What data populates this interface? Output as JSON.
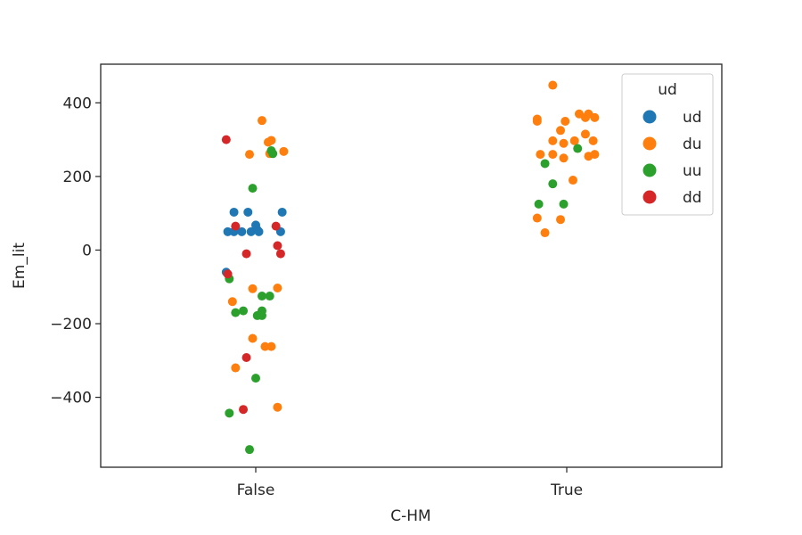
{
  "chart_data": {
    "type": "scatter",
    "subtype": "strip",
    "xlabel": "C-HM",
    "ylabel": "Em_lit",
    "categories": [
      "False",
      "True"
    ],
    "ylim": [
      -590,
      505
    ],
    "yticks": [
      -400,
      -200,
      0,
      200,
      400
    ],
    "ytick_labels": [
      "−400",
      "−200",
      "0",
      "200",
      "400"
    ],
    "grid": false,
    "legend": {
      "title": "ud",
      "position": "top-right"
    },
    "series": [
      {
        "name": "ud",
        "color": "#1f77b4",
        "points": [
          {
            "category": "False",
            "jitter": -0.09,
            "y": 50
          },
          {
            "category": "False",
            "jitter": -0.07,
            "y": 103
          },
          {
            "category": "False",
            "jitter": -0.07,
            "y": 50
          },
          {
            "category": "False",
            "jitter": -0.045,
            "y": 50
          },
          {
            "category": "False",
            "jitter": -0.025,
            "y": 103
          },
          {
            "category": "False",
            "jitter": -0.015,
            "y": 50
          },
          {
            "category": "False",
            "jitter": 0.0,
            "y": 68
          },
          {
            "category": "False",
            "jitter": 0.005,
            "y": 55
          },
          {
            "category": "False",
            "jitter": 0.01,
            "y": 50
          },
          {
            "category": "False",
            "jitter": 0.08,
            "y": 50
          },
          {
            "category": "False",
            "jitter": 0.085,
            "y": 103
          },
          {
            "category": "False",
            "jitter": -0.095,
            "y": -60
          }
        ]
      },
      {
        "name": "du",
        "color": "#ff7f0e",
        "points": [
          {
            "category": "False",
            "jitter": 0.02,
            "y": 352
          },
          {
            "category": "False",
            "jitter": 0.04,
            "y": 293
          },
          {
            "category": "False",
            "jitter": 0.05,
            "y": 298
          },
          {
            "category": "False",
            "jitter": -0.02,
            "y": 260
          },
          {
            "category": "False",
            "jitter": 0.045,
            "y": 262
          },
          {
            "category": "False",
            "jitter": 0.09,
            "y": 268
          },
          {
            "category": "False",
            "jitter": -0.075,
            "y": -140
          },
          {
            "category": "False",
            "jitter": -0.01,
            "y": -105
          },
          {
            "category": "False",
            "jitter": 0.07,
            "y": -103
          },
          {
            "category": "False",
            "jitter": -0.01,
            "y": -240
          },
          {
            "category": "False",
            "jitter": 0.03,
            "y": -262
          },
          {
            "category": "False",
            "jitter": 0.05,
            "y": -262
          },
          {
            "category": "False",
            "jitter": -0.065,
            "y": -320
          },
          {
            "category": "False",
            "jitter": 0.07,
            "y": -427
          },
          {
            "category": "True",
            "jitter": -0.045,
            "y": 448
          },
          {
            "category": "True",
            "jitter": -0.095,
            "y": 350
          },
          {
            "category": "True",
            "jitter": -0.095,
            "y": 356
          },
          {
            "category": "True",
            "jitter": -0.005,
            "y": 350
          },
          {
            "category": "True",
            "jitter": 0.04,
            "y": 370
          },
          {
            "category": "True",
            "jitter": 0.06,
            "y": 360
          },
          {
            "category": "True",
            "jitter": 0.07,
            "y": 370
          },
          {
            "category": "True",
            "jitter": 0.09,
            "y": 360
          },
          {
            "category": "True",
            "jitter": -0.02,
            "y": 325
          },
          {
            "category": "True",
            "jitter": 0.06,
            "y": 315
          },
          {
            "category": "True",
            "jitter": -0.045,
            "y": 297
          },
          {
            "category": "True",
            "jitter": -0.01,
            "y": 290
          },
          {
            "category": "True",
            "jitter": 0.025,
            "y": 297
          },
          {
            "category": "True",
            "jitter": 0.085,
            "y": 297
          },
          {
            "category": "True",
            "jitter": -0.085,
            "y": 260
          },
          {
            "category": "True",
            "jitter": -0.045,
            "y": 260
          },
          {
            "category": "True",
            "jitter": -0.01,
            "y": 250
          },
          {
            "category": "True",
            "jitter": 0.07,
            "y": 255
          },
          {
            "category": "True",
            "jitter": 0.09,
            "y": 260
          },
          {
            "category": "True",
            "jitter": 0.02,
            "y": 190
          },
          {
            "category": "True",
            "jitter": -0.095,
            "y": 87
          },
          {
            "category": "True",
            "jitter": -0.02,
            "y": 83
          },
          {
            "category": "True",
            "jitter": -0.07,
            "y": 47
          }
        ]
      },
      {
        "name": "uu",
        "color": "#2ca02c",
        "points": [
          {
            "category": "False",
            "jitter": 0.05,
            "y": 270
          },
          {
            "category": "False",
            "jitter": 0.055,
            "y": 262
          },
          {
            "category": "False",
            "jitter": -0.01,
            "y": 168
          },
          {
            "category": "False",
            "jitter": -0.085,
            "y": -78
          },
          {
            "category": "False",
            "jitter": 0.02,
            "y": -125
          },
          {
            "category": "False",
            "jitter": 0.045,
            "y": -125
          },
          {
            "category": "False",
            "jitter": -0.065,
            "y": -170
          },
          {
            "category": "False",
            "jitter": -0.04,
            "y": -165
          },
          {
            "category": "False",
            "jitter": 0.005,
            "y": -178
          },
          {
            "category": "False",
            "jitter": 0.02,
            "y": -165
          },
          {
            "category": "False",
            "jitter": 0.02,
            "y": -178
          },
          {
            "category": "False",
            "jitter": 0.0,
            "y": -348
          },
          {
            "category": "False",
            "jitter": -0.085,
            "y": -443
          },
          {
            "category": "False",
            "jitter": -0.02,
            "y": -542
          },
          {
            "category": "True",
            "jitter": -0.07,
            "y": 235
          },
          {
            "category": "True",
            "jitter": -0.045,
            "y": 180
          },
          {
            "category": "True",
            "jitter": 0.035,
            "y": 276
          },
          {
            "category": "True",
            "jitter": -0.09,
            "y": 125
          },
          {
            "category": "True",
            "jitter": -0.01,
            "y": 125
          }
        ]
      },
      {
        "name": "dd",
        "color": "#d62728",
        "points": [
          {
            "category": "False",
            "jitter": -0.095,
            "y": 300
          },
          {
            "category": "False",
            "jitter": -0.065,
            "y": 65
          },
          {
            "category": "False",
            "jitter": -0.03,
            "y": -10
          },
          {
            "category": "False",
            "jitter": 0.065,
            "y": 65
          },
          {
            "category": "False",
            "jitter": 0.07,
            "y": 12
          },
          {
            "category": "False",
            "jitter": 0.08,
            "y": -10
          },
          {
            "category": "False",
            "jitter": -0.09,
            "y": -65
          },
          {
            "category": "False",
            "jitter": -0.03,
            "y": -292
          },
          {
            "category": "False",
            "jitter": -0.04,
            "y": -433
          }
        ]
      }
    ]
  }
}
